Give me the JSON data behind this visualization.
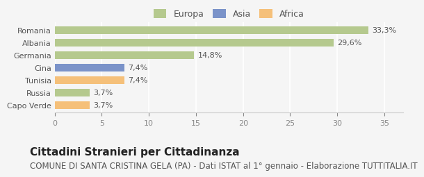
{
  "categories": [
    "Capo Verde",
    "Russia",
    "Tunisia",
    "Cina",
    "Germania",
    "Albania",
    "Romania"
  ],
  "values": [
    3.7,
    3.7,
    7.4,
    7.4,
    14.8,
    29.6,
    33.3
  ],
  "bar_colors": [
    "#f5c07a",
    "#b5c98e",
    "#f5c07a",
    "#7b93c9",
    "#b5c98e",
    "#b5c98e",
    "#b5c98e"
  ],
  "labels": [
    "3,7%",
    "3,7%",
    "7,4%",
    "7,4%",
    "14,8%",
    "29,6%",
    "33,3%"
  ],
  "xlim": [
    0,
    37
  ],
  "xticks": [
    0,
    5,
    10,
    15,
    20,
    25,
    30,
    35
  ],
  "legend_items": [
    {
      "label": "Europa",
      "color": "#b5c98e"
    },
    {
      "label": "Asia",
      "color": "#7b93c9"
    },
    {
      "label": "Africa",
      "color": "#f5c07a"
    }
  ],
  "title": "Cittadini Stranieri per Cittadinanza",
  "subtitle": "COMUNE DI SANTA CRISTINA GELA (PA) - Dati ISTAT al 1° gennaio - Elaborazione TUTTITALIA.IT",
  "background_color": "#f5f5f5",
  "bar_height": 0.6,
  "title_fontsize": 11,
  "subtitle_fontsize": 8.5,
  "label_fontsize": 8,
  "tick_fontsize": 8,
  "legend_fontsize": 9
}
